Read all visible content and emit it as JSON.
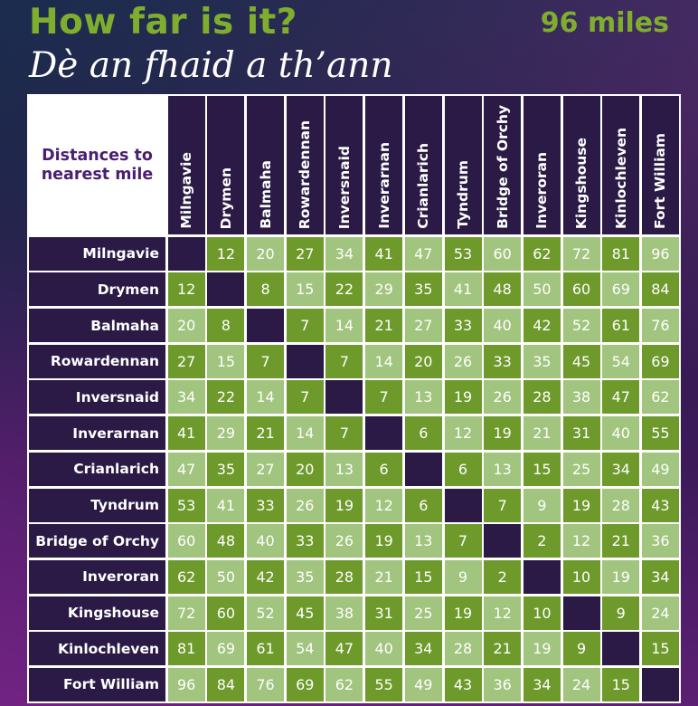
{
  "header": {
    "title": "How far is it?",
    "subtitle": "Dè an fhaid a th’ann",
    "total_distance": "96 miles"
  },
  "table": {
    "corner_label": "Distances to nearest mile",
    "places": [
      "Milngavie",
      "Drymen",
      "Balmaha",
      "Rowardennan",
      "Inversnaid",
      "Inverarnan",
      "Crianlarich",
      "Tyndrum",
      "Bridge of Orchy",
      "Inveroran",
      "Kingshouse",
      "Kinlochleven",
      "Fort William"
    ],
    "matrix": [
      [
        null,
        12,
        20,
        27,
        34,
        41,
        47,
        53,
        60,
        62,
        72,
        81,
        96
      ],
      [
        12,
        null,
        8,
        15,
        22,
        29,
        35,
        41,
        48,
        50,
        60,
        69,
        84
      ],
      [
        20,
        8,
        null,
        7,
        14,
        21,
        27,
        33,
        40,
        42,
        52,
        61,
        76
      ],
      [
        27,
        15,
        7,
        null,
        7,
        14,
        20,
        26,
        33,
        35,
        45,
        54,
        69
      ],
      [
        34,
        22,
        14,
        7,
        null,
        7,
        13,
        19,
        26,
        28,
        38,
        47,
        62
      ],
      [
        41,
        29,
        21,
        14,
        7,
        null,
        6,
        12,
        19,
        21,
        31,
        40,
        55
      ],
      [
        47,
        35,
        27,
        20,
        13,
        6,
        null,
        6,
        13,
        15,
        25,
        34,
        49
      ],
      [
        53,
        41,
        33,
        26,
        19,
        12,
        6,
        null,
        7,
        9,
        19,
        28,
        43
      ],
      [
        60,
        48,
        40,
        33,
        26,
        19,
        13,
        7,
        null,
        2,
        12,
        21,
        36
      ],
      [
        62,
        50,
        42,
        35,
        28,
        21,
        15,
        9,
        2,
        null,
        10,
        19,
        34
      ],
      [
        72,
        60,
        52,
        45,
        38,
        31,
        25,
        19,
        12,
        10,
        null,
        9,
        24
      ],
      [
        81,
        69,
        61,
        54,
        47,
        40,
        34,
        28,
        21,
        19,
        9,
        null,
        15
      ],
      [
        96,
        84,
        76,
        69,
        62,
        55,
        49,
        43,
        36,
        34,
        24,
        15,
        null
      ]
    ]
  },
  "colors": {
    "green_dark": "#6e9a2c",
    "green_light": "#a1c47e",
    "header_bg": "#2a1a45",
    "title_green": "#7fae2e",
    "corner_text": "#4a1f70"
  }
}
